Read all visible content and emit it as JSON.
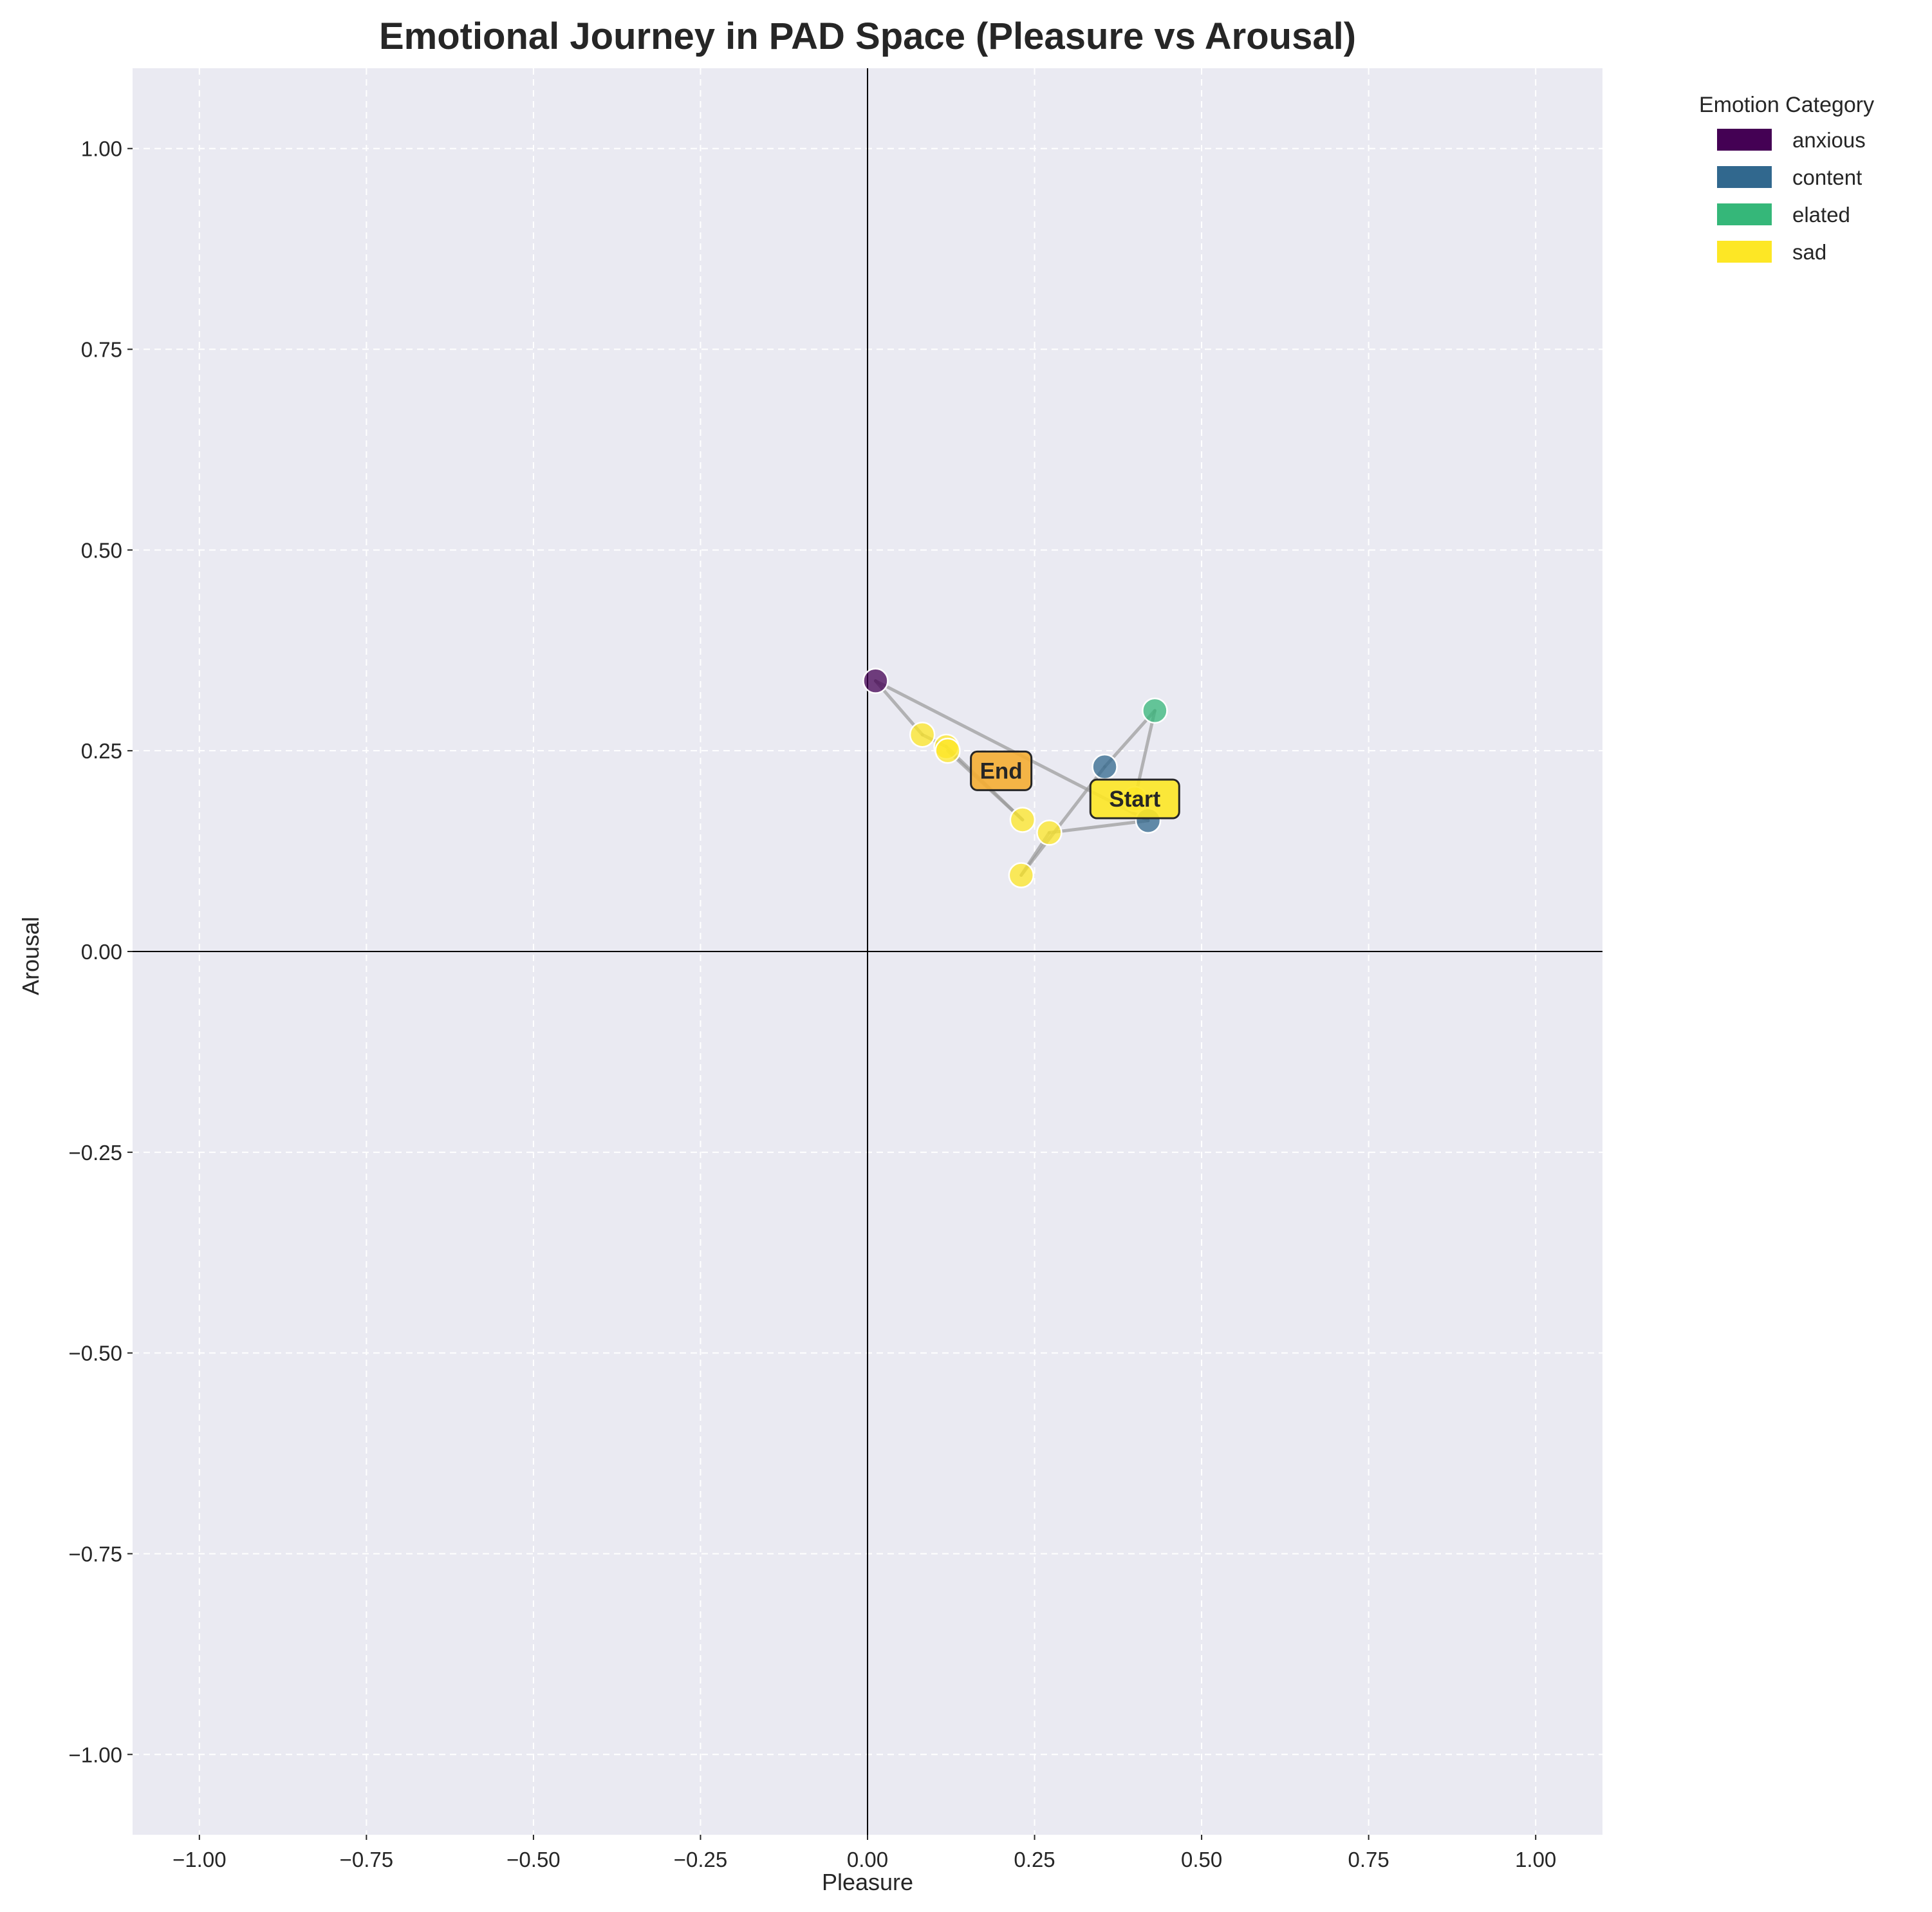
{
  "chart_data": {
    "type": "scatter",
    "title": "Emotional Journey in PAD Space (Pleasure vs Arousal)",
    "xlabel": "Pleasure",
    "ylabel": "Arousal",
    "xlim": [
      -1.1,
      1.1
    ],
    "ylim": [
      -1.1,
      1.1
    ],
    "xticks": [
      -1.0,
      -0.75,
      -0.5,
      -0.25,
      0.0,
      0.25,
      0.5,
      0.75,
      1.0
    ],
    "yticks": [
      -1.0,
      -0.75,
      -0.5,
      -0.25,
      0.0,
      0.25,
      0.5,
      0.75,
      1.0
    ],
    "xtick_labels": [
      "−1.00",
      "−0.75",
      "−0.50",
      "−0.25",
      "0.00",
      "0.25",
      "0.50",
      "0.75",
      "1.00"
    ],
    "ytick_labels": [
      "−1.00",
      "−0.75",
      "−0.50",
      "−0.25",
      "0.00",
      "0.25",
      "0.50",
      "0.75",
      "1.00"
    ],
    "grid": true,
    "background_color": "#eaeaf2",
    "path_color": "#999999",
    "legend": {
      "title": "Emotion Category",
      "placement": "outside-top-right",
      "entries": [
        {
          "label": "anxious",
          "color": "#440154"
        },
        {
          "label": "content",
          "color": "#31688e"
        },
        {
          "label": "elated",
          "color": "#35b779"
        },
        {
          "label": "sad",
          "color": "#fde725"
        }
      ]
    },
    "points": [
      {
        "x": 0.4,
        "y": 0.19,
        "category": "sad"
      },
      {
        "x": 0.43,
        "y": 0.3,
        "category": "elated"
      },
      {
        "x": 0.355,
        "y": 0.23,
        "category": "content"
      },
      {
        "x": 0.23,
        "y": 0.095,
        "category": "sad"
      },
      {
        "x": 0.272,
        "y": 0.148,
        "category": "sad"
      },
      {
        "x": 0.42,
        "y": 0.163,
        "category": "content"
      },
      {
        "x": 0.012,
        "y": 0.337,
        "category": "anxious"
      },
      {
        "x": 0.082,
        "y": 0.27,
        "category": "sad"
      },
      {
        "x": 0.118,
        "y": 0.255,
        "category": "sad"
      },
      {
        "x": 0.232,
        "y": 0.164,
        "category": "sad"
      },
      {
        "x": 0.12,
        "y": 0.25,
        "category": "sad"
      }
    ],
    "annotations": [
      {
        "text": "Start",
        "x": 0.4,
        "y": 0.19,
        "box_color": "#fde725"
      },
      {
        "text": "End",
        "x": 0.2,
        "y": 0.225,
        "box_color": "#f5ae33"
      }
    ]
  }
}
